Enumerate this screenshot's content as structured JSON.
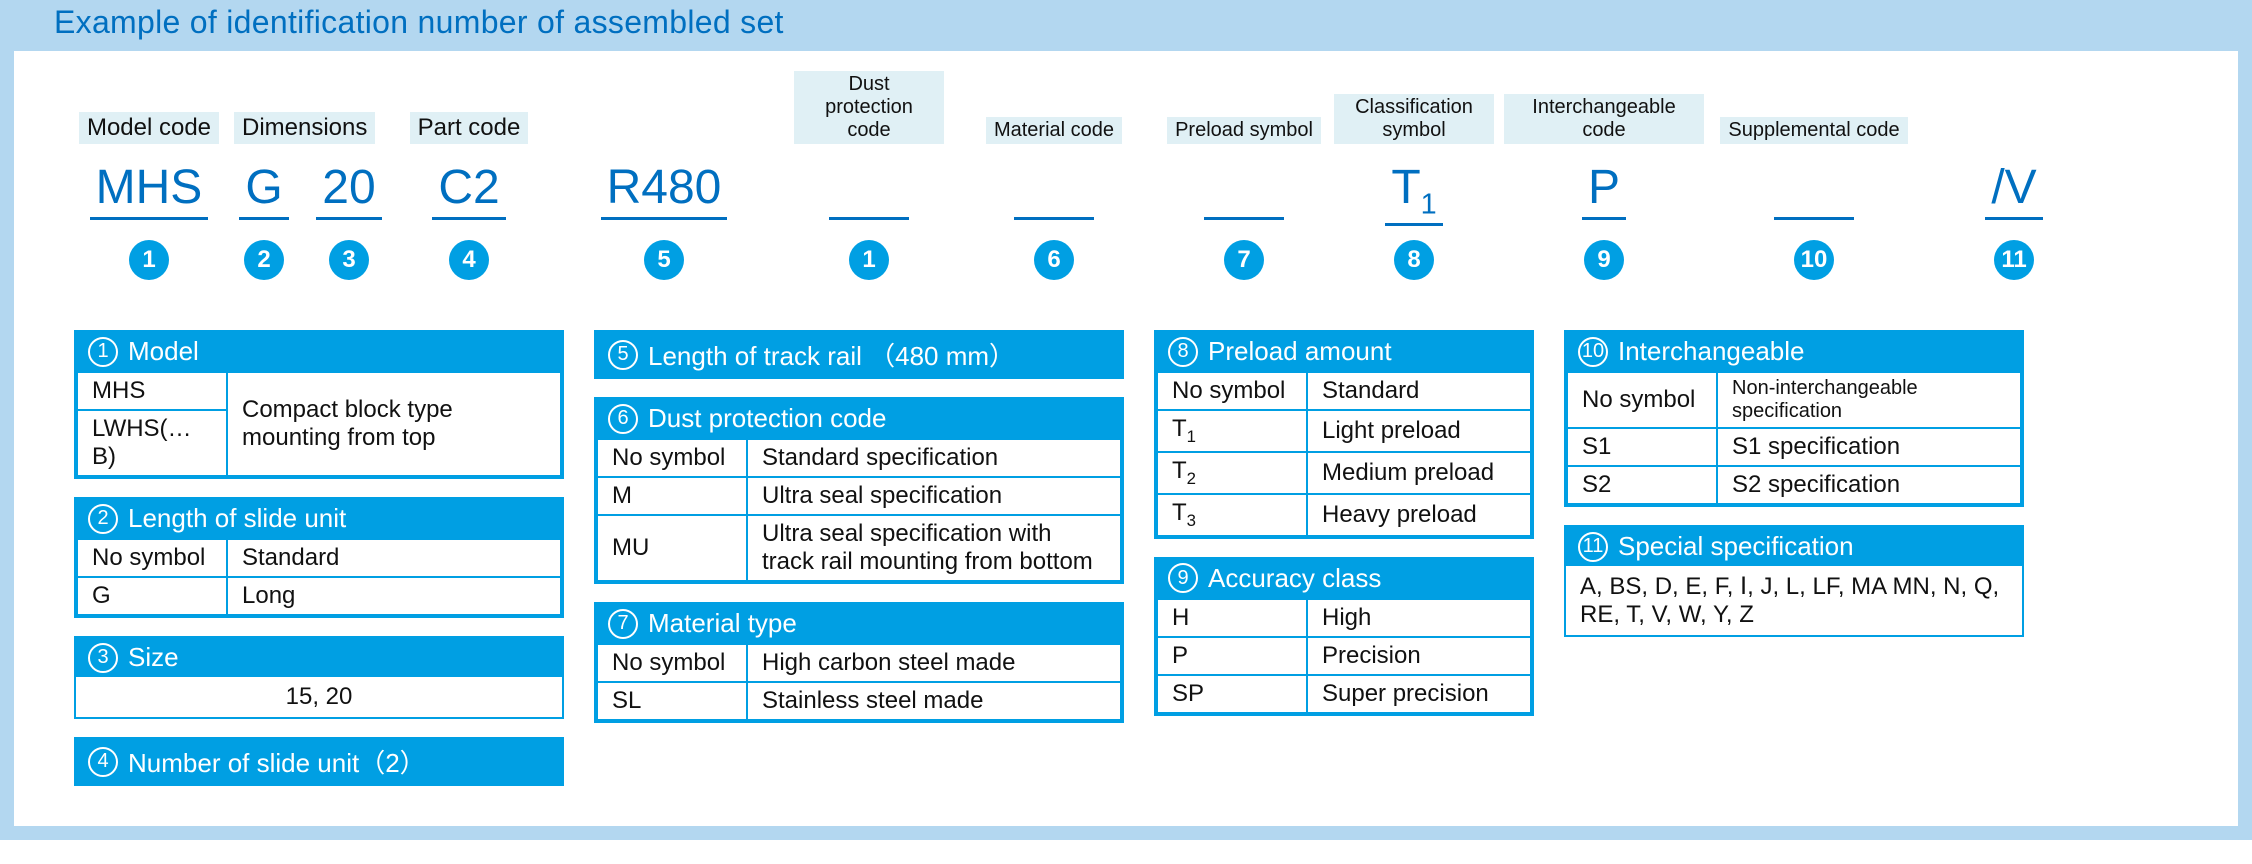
{
  "title": "Example of identification number of assembled set",
  "top_labels": [
    {
      "text": "Model code",
      "size": "big"
    },
    {
      "text": "Dimensions",
      "size": "big"
    },
    {
      "text": "Part code",
      "size": "big",
      "span": 2
    },
    {
      "text": "",
      "size": "big",
      "skip": true
    },
    {
      "text": "Model code",
      "size": "big"
    },
    {
      "text": "Dust protection code",
      "size": "small"
    },
    {
      "text": "Material code",
      "size": "small"
    },
    {
      "text": "Preload symbol",
      "size": "small"
    },
    {
      "text": "Classification symbol",
      "size": "small"
    },
    {
      "text": "Interchangeable code",
      "size": "small"
    },
    {
      "text": "Supplemental code",
      "size": "small"
    }
  ],
  "codes": [
    "MHS",
    "G",
    "20",
    "C2",
    "R480",
    "",
    "",
    "",
    "T1",
    "P",
    "",
    "/V"
  ],
  "code_has_sub": [
    false,
    false,
    false,
    false,
    false,
    false,
    false,
    false,
    true,
    false,
    false,
    false
  ],
  "nums": [
    "1",
    "2",
    "3",
    "4",
    "5",
    "1",
    "6",
    "7",
    "8",
    "9",
    "10",
    "11"
  ],
  "col1": {
    "b1": {
      "n": "1",
      "title": "Model",
      "rows": [
        [
          "MHS",
          ""
        ],
        [
          "LWHS(…B)",
          ""
        ]
      ],
      "rowspan_right": "Compact block type mounting from top"
    },
    "b2": {
      "n": "2",
      "title": "Length of slide unit",
      "rows": [
        [
          "No symbol",
          "Standard"
        ],
        [
          "G",
          "Long"
        ]
      ]
    },
    "b3": {
      "n": "3",
      "title": "Size",
      "plain": "15, 20"
    },
    "b4": {
      "n": "4",
      "title": "Number of slide unit（2）"
    }
  },
  "col2": {
    "b5": {
      "n": "5",
      "title": "Length of track rail （480 mm）"
    },
    "b6": {
      "n": "6",
      "title": "Dust protection code",
      "rows": [
        [
          "No symbol",
          "Standard specification"
        ],
        [
          "M",
          "Ultra seal specification"
        ],
        [
          "MU",
          "Ultra seal specification with track rail mounting from bottom"
        ]
      ]
    },
    "b7": {
      "n": "7",
      "title": "Material type",
      "rows": [
        [
          "No symbol",
          "High carbon steel made"
        ],
        [
          "SL",
          "Stainless steel made"
        ]
      ]
    }
  },
  "col3": {
    "b8": {
      "n": "8",
      "title": "Preload amount",
      "rows": [
        [
          "No symbol",
          "Standard"
        ],
        [
          "T1",
          "Light preload"
        ],
        [
          "T2",
          "Medium preload"
        ],
        [
          "T3",
          "Heavy preload"
        ]
      ],
      "sub": [
        false,
        true,
        true,
        true
      ]
    },
    "b9": {
      "n": "9",
      "title": "Accuracy class",
      "rows": [
        [
          "H",
          "High"
        ],
        [
          "P",
          "Precision"
        ],
        [
          "SP",
          "Super precision"
        ]
      ]
    }
  },
  "col4": {
    "b10": {
      "n": "10",
      "title": "Interchangeable",
      "rows": [
        [
          "No symbol",
          "Non-interchangeable specification"
        ],
        [
          "S1",
          "S1 specification"
        ],
        [
          "S2",
          "S2 specification"
        ]
      ]
    },
    "b11": {
      "n": "11",
      "title": "Special specification",
      "plain": "A, BS, D, E, F, Ⅰ, J, L, LF, MA MN, N, Q, RE, T, V, W, Y, Z"
    }
  },
  "colors": {
    "accent": "#009fe3",
    "title": "#006fc0",
    "header": "#b3d7f0",
    "label_bg": "#e0f0f5"
  }
}
